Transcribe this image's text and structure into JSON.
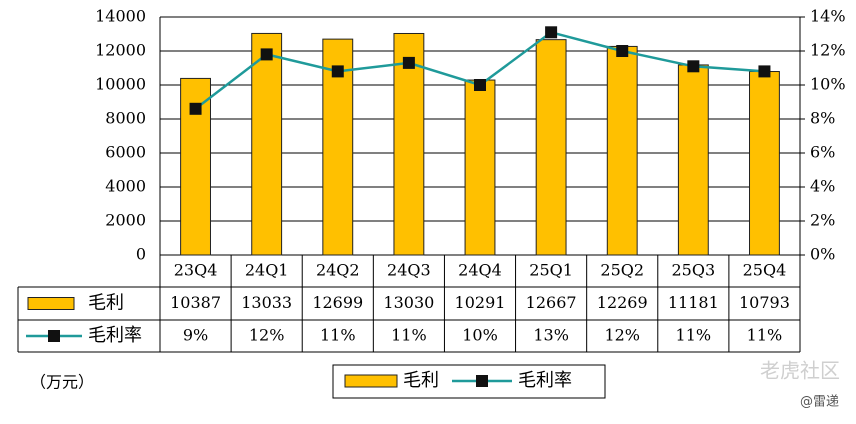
{
  "chart_data": {
    "type": "bar",
    "categories": [
      "23Q4",
      "24Q1",
      "24Q2",
      "24Q3",
      "24Q4",
      "25Q1",
      "25Q2",
      "25Q3",
      "25Q4"
    ],
    "series": [
      {
        "name": "毛利",
        "type": "bar",
        "color": "#FFC000",
        "values": [
          10387,
          13033,
          12699,
          13030,
          10291,
          12667,
          12269,
          11181,
          10793
        ]
      },
      {
        "name": "毛利率",
        "type": "line",
        "color": "#1F9A9A",
        "axis": "y2",
        "values": [
          8.6,
          11.8,
          10.8,
          11.3,
          10.0,
          13.1,
          12.0,
          11.1,
          10.8
        ],
        "value_labels": [
          "9%",
          "12%",
          "11%",
          "11%",
          "10%",
          "13%",
          "12%",
          "11%",
          "11%"
        ]
      }
    ],
    "ylim": [
      0,
      14000
    ],
    "yticks": [
      0,
      2000,
      4000,
      6000,
      8000,
      10000,
      12000,
      14000
    ],
    "y2lim": [
      0,
      14
    ],
    "y2ticks": [
      {
        "value": 0,
        "label": "0%"
      },
      {
        "value": 2,
        "label": "2%"
      },
      {
        "value": 4,
        "label": "4%"
      },
      {
        "value": 6,
        "label": "6%"
      },
      {
        "value": 8,
        "label": "8%"
      },
      {
        "value": 10,
        "label": "10%"
      },
      {
        "value": 12,
        "label": "12%"
      },
      {
        "value": 14,
        "label": "14%"
      }
    ],
    "grid": true,
    "unit_note": "（万元）",
    "watermark": "老虎社区",
    "source": "@雷递"
  }
}
